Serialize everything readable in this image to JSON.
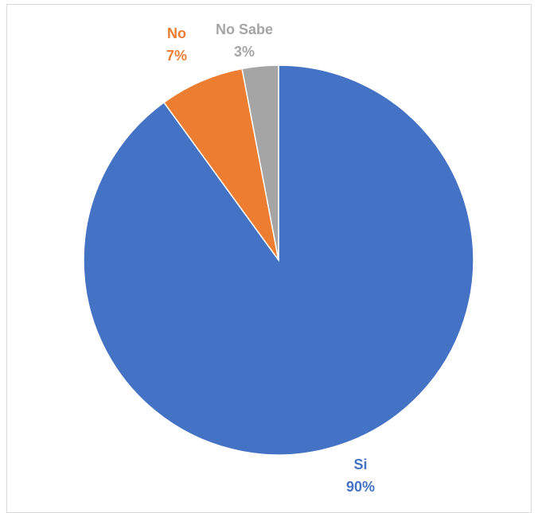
{
  "chart_data": {
    "type": "pie",
    "title": "",
    "categories": [
      "Si",
      "No",
      "No Sabe"
    ],
    "values": [
      90,
      7,
      3
    ],
    "value_labels": [
      "90%",
      "7%",
      "3%"
    ],
    "colors": [
      "#4472C4",
      "#ED7D31",
      "#A5A5A5"
    ],
    "start_angle": "12 o'clock",
    "direction": "clockwise",
    "legend": "none",
    "data_labels": "outside"
  }
}
